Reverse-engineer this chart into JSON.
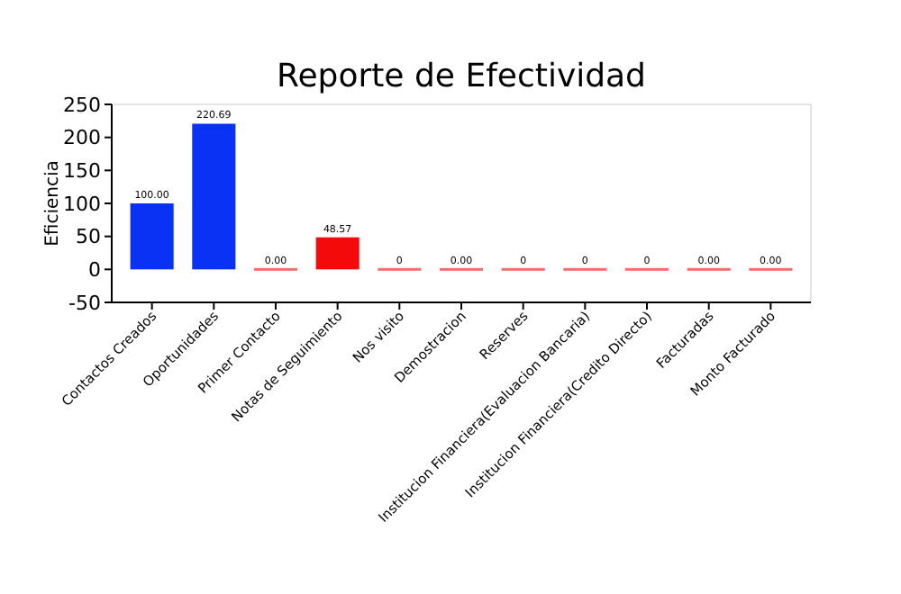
{
  "chart_data": {
    "type": "bar",
    "title": "Reporte de Efectividad",
    "ylabel": "Eficiencia",
    "categories": [
      "Contactos Creados",
      "Oportunidades",
      "Primer Contacto",
      "Notas de Seguimiento",
      "Nos visito",
      "Demostracion",
      "Reserves",
      "Institucion Financiera(Evaluacion Bancaria)",
      "Institucion Financiera(Credito Directo)",
      "Facturadas",
      "Monto Facturado"
    ],
    "values": [
      100,
      220.69,
      0,
      48.57,
      0,
      0,
      0,
      0,
      0,
      0,
      0
    ],
    "colors": [
      "#0a32f5",
      "#0a32f5",
      "#f50a0a",
      "#f50a0a",
      "#f50a0a",
      "#f50a0a",
      "#f50a0a",
      "#f50a0a",
      "#f50a0a",
      "#f50a0a",
      "#f50a0a"
    ],
    "value_labels": [
      "100.00",
      "220.69",
      "0.00",
      "48.57",
      "0",
      "0.00",
      "0",
      "0",
      "0",
      "0.00",
      "0.00"
    ],
    "ylim": [
      -50,
      250
    ],
    "yticks": [
      -50,
      0,
      50,
      100,
      150,
      200,
      250
    ],
    "grid": false
  }
}
